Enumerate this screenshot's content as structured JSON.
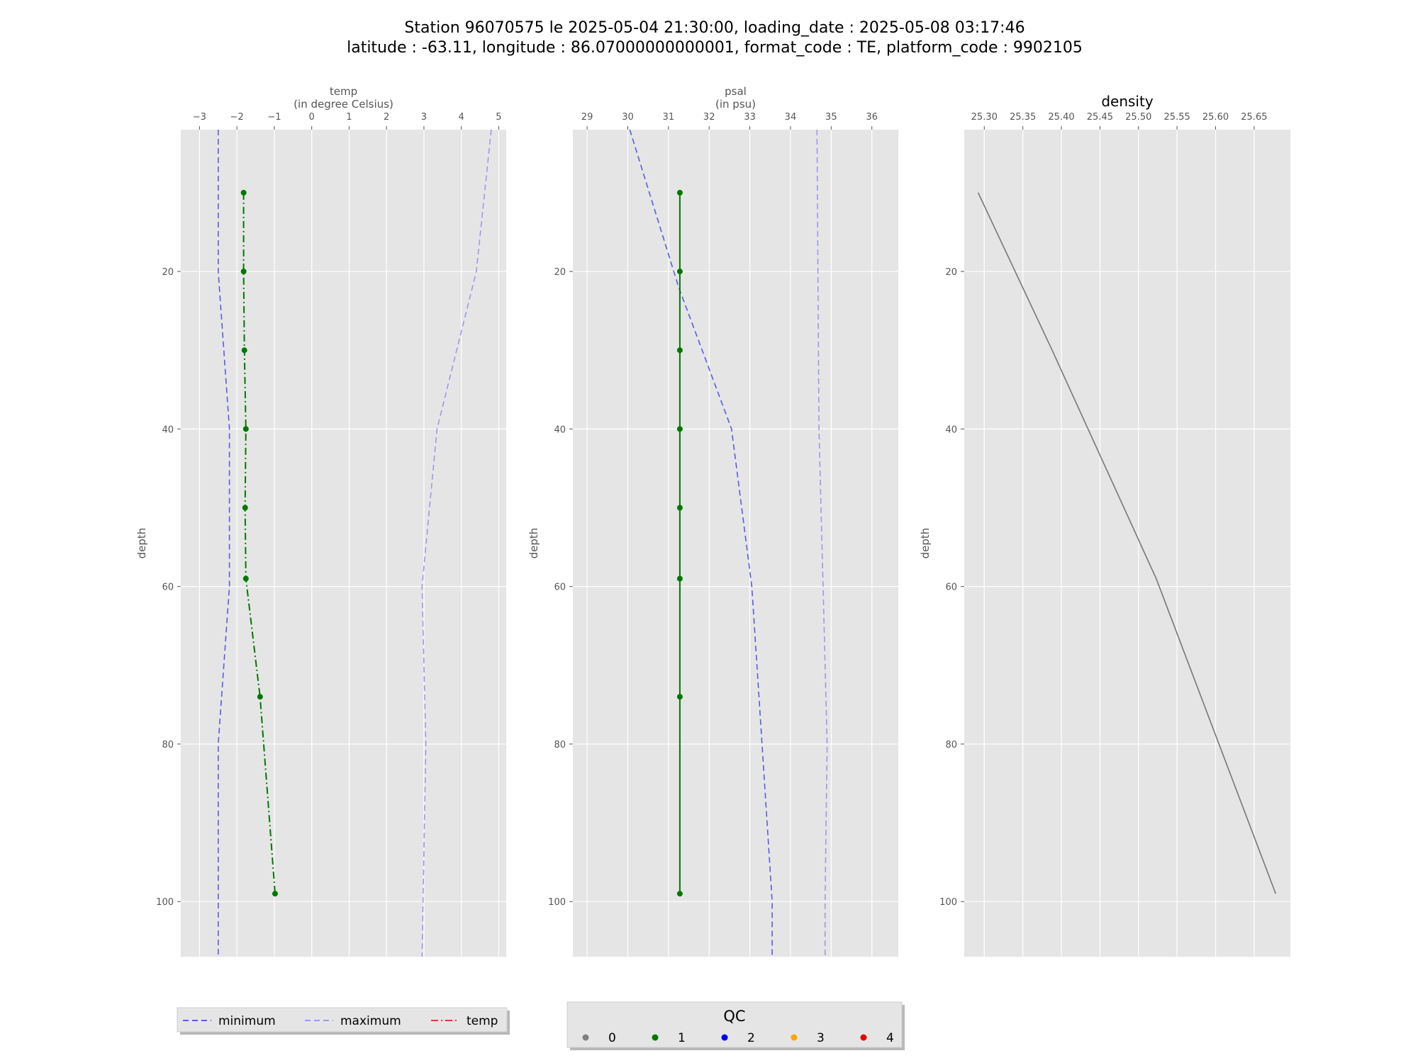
{
  "suptitle": {
    "line1": "Station 96070575 le 2025-05-04 21:30:00, loading_date : 2025-05-08 03:17:46",
    "line2": "latitude : -63.11, longitude : 86.07000000000001, format_code : TE, platform_code : 9902105"
  },
  "colors": {
    "panel_bg": "#e5e5e5",
    "grid": "#ffffff",
    "minimum": "#5a5ae6",
    "maximum": "#9a9aee",
    "qc1": "#007800",
    "density": "#777777",
    "temp_legend": "#e8383c"
  },
  "chart_data": [
    {
      "type": "line",
      "title_lines": [
        "temp",
        "(in degree Celsius)"
      ],
      "xlabel": "",
      "ylabel": "depth",
      "xlim": [
        -3.5,
        5.2
      ],
      "ylim": [
        107,
        2
      ],
      "inverted_y": true,
      "grid": true,
      "xticks": [
        -3,
        -2,
        -1,
        0,
        1,
        2,
        3,
        4,
        5
      ],
      "xtick_labels": [
        "−3",
        "−2",
        "−1",
        "0",
        "1",
        "2",
        "3",
        "4",
        "5"
      ],
      "yticks": [
        20,
        40,
        60,
        80,
        100
      ],
      "ytick_labels": [
        "20",
        "40",
        "60",
        "80",
        "100"
      ],
      "series": [
        {
          "name": "minimum",
          "style": "dashed",
          "color_key": "minimum",
          "x": [
            -2.5,
            -2.5,
            -2.2,
            -2.2,
            -2.5,
            -2.5
          ],
          "y": [
            2,
            20,
            40,
            60,
            80,
            107
          ]
        },
        {
          "name": "maximum",
          "style": "dashed",
          "color_key": "maximum",
          "x": [
            4.8,
            4.4,
            3.35,
            2.95,
            3.05,
            2.95
          ],
          "y": [
            2,
            20,
            40,
            60,
            80,
            107
          ]
        },
        {
          "name": "temp",
          "style": "dashdot",
          "markers": true,
          "color_key": "qc1",
          "x": [
            -1.82,
            -1.82,
            -1.8,
            -1.76,
            -1.78,
            -1.76,
            -1.38,
            -0.98
          ],
          "y": [
            10,
            20,
            30,
            40,
            50,
            59,
            74,
            99
          ]
        }
      ]
    },
    {
      "type": "line",
      "title_lines": [
        "psal",
        "(in psu)"
      ],
      "xlabel": "",
      "ylabel": "depth",
      "xlim": [
        28.65,
        36.65
      ],
      "ylim": [
        107,
        2
      ],
      "inverted_y": true,
      "grid": true,
      "xticks": [
        29,
        30,
        31,
        32,
        33,
        34,
        35,
        36
      ],
      "xtick_labels": [
        "29",
        "30",
        "31",
        "32",
        "33",
        "34",
        "35",
        "36"
      ],
      "yticks": [
        20,
        40,
        60,
        80,
        100
      ],
      "ytick_labels": [
        "20",
        "40",
        "60",
        "80",
        "100"
      ],
      "series": [
        {
          "name": "minimum",
          "style": "dashed",
          "color_key": "minimum",
          "x": [
            30.05,
            31.25,
            32.55,
            33.05,
            33.3,
            33.55,
            33.55
          ],
          "y": [
            2,
            22,
            40,
            60,
            80,
            100,
            107
          ]
        },
        {
          "name": "maximum",
          "style": "dashed",
          "color_key": "maximum",
          "x": [
            34.65,
            34.7,
            34.8,
            34.9,
            34.85,
            34.85
          ],
          "y": [
            2,
            40,
            60,
            80,
            100,
            107
          ]
        },
        {
          "name": "psal",
          "style": "solid",
          "markers": true,
          "color_key": "qc1",
          "x": [
            31.28,
            31.28,
            31.28,
            31.28,
            31.28,
            31.28,
            31.28,
            31.28
          ],
          "y": [
            10,
            20,
            30,
            40,
            50,
            59,
            74,
            99
          ]
        }
      ]
    },
    {
      "type": "line",
      "title_lines": [
        "density"
      ],
      "xlabel": "",
      "ylabel": "depth",
      "xlim": [
        25.274,
        25.697
      ],
      "ylim": [
        107,
        2
      ],
      "inverted_y": true,
      "grid": true,
      "xticks": [
        25.3,
        25.35,
        25.4,
        25.45,
        25.5,
        25.55,
        25.6,
        25.65
      ],
      "xtick_labels": [
        "25.30",
        "25.35",
        "25.40",
        "25.45",
        "25.50",
        "25.55",
        "25.60",
        "25.65"
      ],
      "yticks": [
        20,
        40,
        60,
        80,
        100
      ],
      "ytick_labels": [
        "20",
        "40",
        "60",
        "80",
        "100"
      ],
      "series": [
        {
          "name": "density",
          "style": "solid",
          "color_key": "density",
          "x": [
            25.292,
            25.388,
            25.523,
            25.678
          ],
          "y": [
            10,
            30,
            59,
            99
          ]
        }
      ]
    }
  ],
  "legend_main": {
    "items": [
      {
        "label": "minimum",
        "style": "dashed",
        "color_key": "minimum"
      },
      {
        "label": "maximum",
        "style": "dashed",
        "color_key": "maximum"
      },
      {
        "label": "temp",
        "style": "dashdot",
        "color_key": "temp_legend"
      }
    ]
  },
  "legend_qc": {
    "title": "QC",
    "items": [
      {
        "label": "0",
        "color": "#808080"
      },
      {
        "label": "1",
        "color": "#007800"
      },
      {
        "label": "2",
        "color": "#0000e6"
      },
      {
        "label": "3",
        "color": "#ffa500"
      },
      {
        "label": "4",
        "color": "#e60000"
      }
    ]
  }
}
